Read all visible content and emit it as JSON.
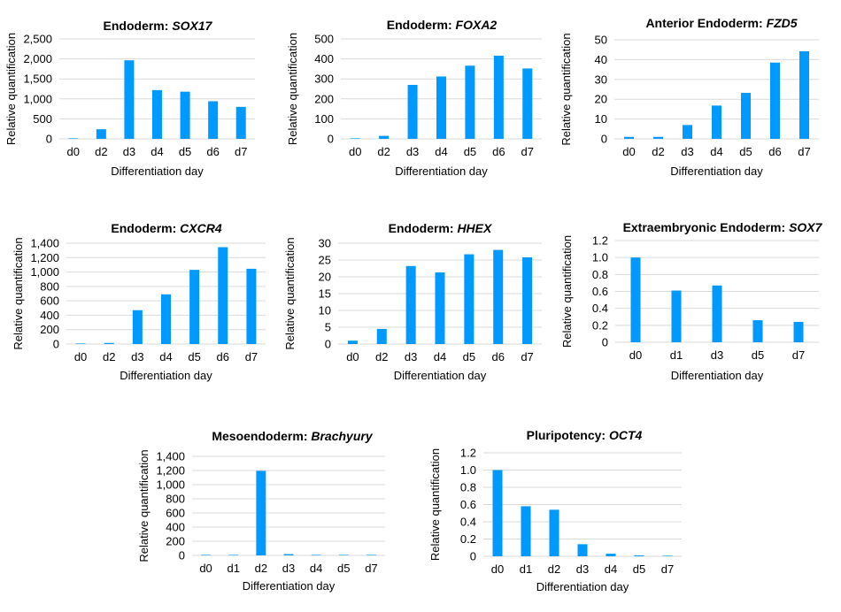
{
  "chart_data": [
    {
      "type": "bar",
      "title_prefix": "Endoderm: ",
      "title_gene": "SOX17",
      "xlabel": "Differentiation day",
      "ylabel": "Relative quantification",
      "categories": [
        "d0",
        "d2",
        "d3",
        "d4",
        "d5",
        "d6",
        "d7"
      ],
      "values": [
        2,
        240,
        1965,
        1220,
        1180,
        940,
        800
      ],
      "ylim": [
        0,
        2500
      ],
      "yticks": [
        0,
        500,
        1000,
        1500,
        2000,
        2500
      ],
      "ytick_labels": [
        "0",
        "500",
        "1,000",
        "1,500",
        "2,000",
        "2,500"
      ]
    },
    {
      "type": "bar",
      "title_prefix": "Endoderm: ",
      "title_gene": "FOXA2",
      "xlabel": "Differentiation day",
      "ylabel": "Relative quantification",
      "categories": [
        "d0",
        "d2",
        "d3",
        "d4",
        "d5",
        "d6",
        "d7"
      ],
      "values": [
        1,
        15,
        270,
        312,
        366,
        416,
        352
      ],
      "ylim": [
        0,
        500
      ],
      "yticks": [
        0,
        100,
        200,
        300,
        400,
        500
      ],
      "ytick_labels": [
        "0",
        "100",
        "200",
        "300",
        "400",
        "500"
      ]
    },
    {
      "type": "bar",
      "title_prefix": "Anterior Endoderm: ",
      "title_gene": "FZD5",
      "xlabel": "Differentiation day",
      "ylabel": "Relative quantification",
      "categories": [
        "d0",
        "d2",
        "d3",
        "d4",
        "d5",
        "d6",
        "d7"
      ],
      "values": [
        1,
        1,
        7,
        16.8,
        23.2,
        38.5,
        44.2
      ],
      "ylim": [
        0,
        50
      ],
      "yticks": [
        0,
        10,
        20,
        30,
        40,
        50
      ],
      "ytick_labels": [
        "0",
        "10",
        "20",
        "30",
        "40",
        "50"
      ]
    },
    {
      "type": "bar",
      "title_prefix": "Endoderm: ",
      "title_gene": "CXCR4",
      "xlabel": "Differentiation day",
      "ylabel": "Relative quantification",
      "categories": [
        "d0",
        "d2",
        "d3",
        "d4",
        "d5",
        "d6",
        "d7"
      ],
      "values": [
        1,
        15,
        470,
        690,
        1030,
        1345,
        1045
      ],
      "ylim": [
        0,
        1400
      ],
      "yticks": [
        0,
        200,
        400,
        600,
        800,
        1000,
        1200,
        1400
      ],
      "ytick_labels": [
        "0",
        "200",
        "400",
        "600",
        "800",
        "1,000",
        "1,200",
        "1,400"
      ]
    },
    {
      "type": "bar",
      "title_prefix": "Endoderm: ",
      "title_gene": "HHEX",
      "xlabel": "Differentiation day",
      "ylabel": "Relative quantification",
      "categories": [
        "d0",
        "d2",
        "d3",
        "d4",
        "d5",
        "d6",
        "d7"
      ],
      "values": [
        1,
        4.5,
        23.2,
        21.3,
        26.7,
        28,
        25.8
      ],
      "ylim": [
        0,
        30
      ],
      "yticks": [
        0,
        5,
        10,
        15,
        20,
        25,
        30
      ],
      "ytick_labels": [
        "0",
        "5",
        "10",
        "15",
        "20",
        "25",
        "30"
      ]
    },
    {
      "type": "bar",
      "title_prefix": "Extraembryonic Endoderm: ",
      "title_gene": "SOX7",
      "xlabel": "Differentiation day",
      "ylabel": "Relative quantification",
      "categories": [
        "d0",
        "d1",
        "d3",
        "d5",
        "d7"
      ],
      "values": [
        1.0,
        0.61,
        0.67,
        0.26,
        0.24
      ],
      "ylim": [
        0,
        1.2
      ],
      "yticks": [
        0,
        0.2,
        0.4,
        0.6,
        0.8,
        1.0,
        1.2
      ],
      "ytick_labels": [
        "0",
        "0.2",
        "0.4",
        "0.6",
        "0.8",
        "1.0",
        "1.2"
      ]
    },
    {
      "type": "bar",
      "title_prefix": "Mesoendoderm: ",
      "title_gene": "Brachyury",
      "xlabel": "Differentiation day",
      "ylabel": "Relative quantification",
      "categories": [
        "d0",
        "d1",
        "d2",
        "d3",
        "d4",
        "d5",
        "d7"
      ],
      "values": [
        1,
        6,
        1195,
        18,
        4,
        2,
        1
      ],
      "ylim": [
        0,
        1400
      ],
      "yticks": [
        0,
        200,
        400,
        600,
        800,
        1000,
        1200,
        1400
      ],
      "ytick_labels": [
        "0",
        "200",
        "400",
        "600",
        "800",
        "1,000",
        "1,200",
        "1,400"
      ]
    },
    {
      "type": "bar",
      "title_prefix": "Pluripotency: ",
      "title_gene": "OCT4",
      "xlabel": "Differentiation day",
      "ylabel": "Relative quantification",
      "categories": [
        "d0",
        "d1",
        "d2",
        "d3",
        "d4",
        "d5",
        "d7"
      ],
      "values": [
        1.0,
        0.58,
        0.54,
        0.14,
        0.03,
        0.01,
        0.005
      ],
      "ylim": [
        0,
        1.2
      ],
      "yticks": [
        0,
        0.2,
        0.4,
        0.6,
        0.8,
        1.0,
        1.2
      ],
      "ytick_labels": [
        "0",
        "0.2",
        "0.4",
        "0.6",
        "0.8",
        "1.0",
        "1.2"
      ]
    }
  ],
  "colors": {
    "bar": "#0099ff",
    "gridline": "#d9d9d9",
    "text": "#000000"
  }
}
